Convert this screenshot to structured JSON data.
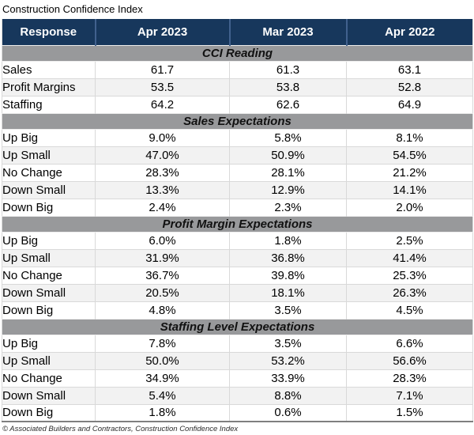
{
  "title": "Construction Confidence Index",
  "footer": "© Associated Builders and Contractors, Construction Confidence Index",
  "colors": {
    "header_bg": "#17375C",
    "header_divider": "#41618E",
    "section_bg": "#98999B",
    "row_stripe": "#F2F2F2",
    "grid_line": "#D9D9D9",
    "table_bottom_border": "#7F7F7F"
  },
  "chart_data": {
    "type": "table",
    "title": "Construction Confidence Index",
    "source": "© Associated Builders and Contractors, Construction Confidence Index",
    "columns": [
      "Response",
      "Apr 2023",
      "Mar 2023",
      "Apr 2022"
    ],
    "sections": [
      {
        "header": "CCI Reading",
        "rows": [
          {
            "label": "Sales",
            "values": [
              "61.7",
              "61.3",
              "63.1"
            ]
          },
          {
            "label": "Profit Margins",
            "values": [
              "53.5",
              "53.8",
              "52.8"
            ]
          },
          {
            "label": "Staffing",
            "values": [
              "64.2",
              "62.6",
              "64.9"
            ]
          }
        ]
      },
      {
        "header": "Sales Expectations",
        "rows": [
          {
            "label": "Up Big",
            "values": [
              "9.0%",
              "5.8%",
              "8.1%"
            ]
          },
          {
            "label": "Up Small",
            "values": [
              "47.0%",
              "50.9%",
              "54.5%"
            ]
          },
          {
            "label": "No Change",
            "values": [
              "28.3%",
              "28.1%",
              "21.2%"
            ]
          },
          {
            "label": "Down Small",
            "values": [
              "13.3%",
              "12.9%",
              "14.1%"
            ]
          },
          {
            "label": "Down Big",
            "values": [
              "2.4%",
              "2.3%",
              "2.0%"
            ]
          }
        ]
      },
      {
        "header": "Profit Margin Expectations",
        "rows": [
          {
            "label": "Up Big",
            "values": [
              "6.0%",
              "1.8%",
              "2.5%"
            ]
          },
          {
            "label": "Up Small",
            "values": [
              "31.9%",
              "36.8%",
              "41.4%"
            ]
          },
          {
            "label": "No Change",
            "values": [
              "36.7%",
              "39.8%",
              "25.3%"
            ]
          },
          {
            "label": "Down Small",
            "values": [
              "20.5%",
              "18.1%",
              "26.3%"
            ]
          },
          {
            "label": "Down Big",
            "values": [
              "4.8%",
              "3.5%",
              "4.5%"
            ]
          }
        ]
      },
      {
        "header": "Staffing Level Expectations",
        "rows": [
          {
            "label": "Up Big",
            "values": [
              "7.8%",
              "3.5%",
              "6.6%"
            ]
          },
          {
            "label": "Up Small",
            "values": [
              "50.0%",
              "53.2%",
              "56.6%"
            ]
          },
          {
            "label": "No Change",
            "values": [
              "34.9%",
              "33.9%",
              "28.3%"
            ]
          },
          {
            "label": "Down Small",
            "values": [
              "5.4%",
              "8.8%",
              "7.1%"
            ]
          },
          {
            "label": "Down Big",
            "values": [
              "1.8%",
              "0.6%",
              "1.5%"
            ]
          }
        ]
      }
    ],
    "layout": {
      "grid": true,
      "striped_rows": true,
      "header_style": "navy background, white bold text",
      "section_style": "gray background, bold italic centered"
    }
  }
}
